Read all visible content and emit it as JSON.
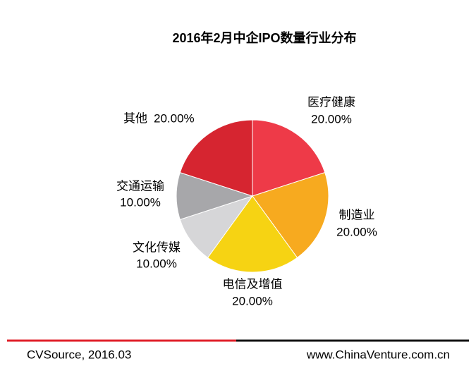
{
  "chart_data": {
    "type": "pie",
    "title": "2016年2月中企IPO数量行业分布",
    "categories": [
      "医疗健康",
      "制造业",
      "电信及增值",
      "文化传媒",
      "交通运输",
      "其他"
    ],
    "values": [
      20,
      20,
      20,
      10,
      10,
      20
    ],
    "value_labels": [
      "20.00%",
      "20.00%",
      "20.00%",
      "10.00%",
      "10.00%",
      "20.00%"
    ],
    "colors": [
      "#ee3a48",
      "#f7aa1f",
      "#f6d313",
      "#d6d6d8",
      "#a7a7aa",
      "#d62530"
    ]
  },
  "footer": {
    "source": "CVSource, 2016.03",
    "website": "www.ChinaVenture.com.cn"
  }
}
